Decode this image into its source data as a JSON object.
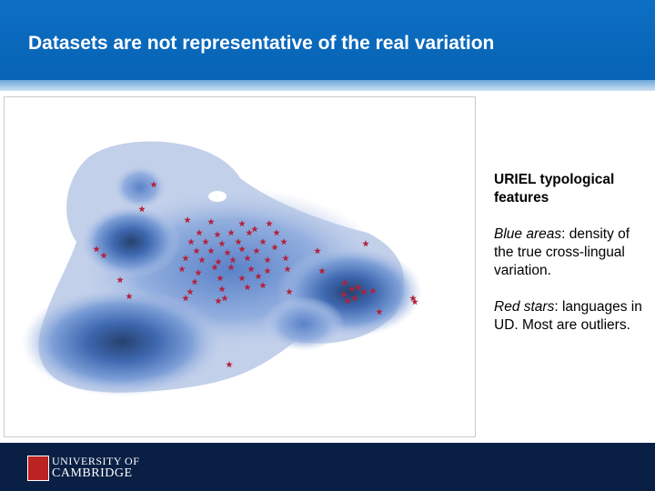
{
  "header": {
    "title": "Datasets are not representative of the real variation"
  },
  "panel": {
    "heading": "URIEL typological features",
    "items": [
      {
        "term": "Blue areas",
        "text": ": density of the true cross-lingual variation."
      },
      {
        "term": "Red stars",
        "text": ": languages in UD. Most are outliers."
      }
    ]
  },
  "footer": {
    "logo_line1": "UNIVERSITY OF",
    "logo_line2": "CAMBRIDGE"
  }
}
